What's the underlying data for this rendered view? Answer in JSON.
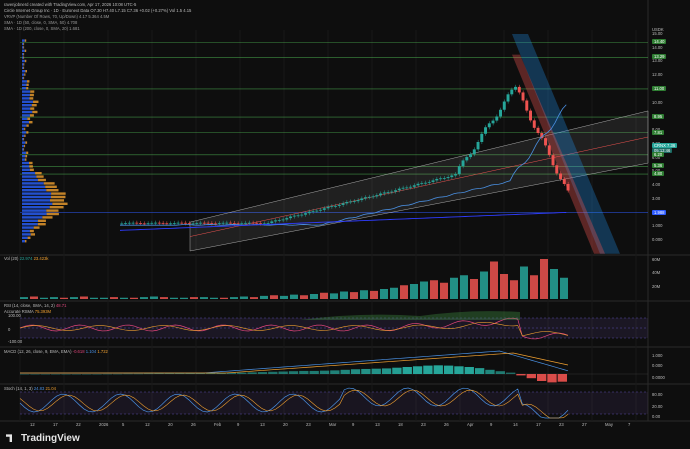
{
  "header": {
    "line1": "ravenjobnerd created with TradingView.com, Apr 17, 2026 10:08 UTC-5",
    "line2": "Circle Internet Group Inc · 1D · Euronext Data  O7.30  H7.40  L7.15  C7.36  +0.02 (+0.27%)  Vol 1.5  4.15",
    "line3": "VRVP (Number Of Rows, 70, Up/Down)  4.17  5.364  4.5M",
    "line4": "SMA · 1D (50, close, 0, SMA, 50)  4.708",
    "line5": "SMA · 1D (200, close, 0, SMA, 20)  1.681"
  },
  "colors": {
    "up": "#26a69a",
    "down": "#ef5350",
    "channel_fill": "#ffffff",
    "sma50": "#4a90e2",
    "sma200": "#2f3cff",
    "level_line": "#4caf50"
  },
  "price_scale": {
    "label": "USDK",
    "ticks": [
      "15.00",
      "14.00",
      "13.00",
      "12.00",
      "11.00",
      "10.00",
      "9.00",
      "8.00",
      "7.00",
      "6.00",
      "5.00",
      "4.00",
      "3.00",
      "2.00",
      "1.000",
      "0.000"
    ],
    "level_tags": [
      "14.40",
      "13.29",
      "11.00",
      "8.95",
      "7.81",
      "6.20",
      "5.36",
      "4.80",
      "1.988"
    ],
    "current_tag": "7.36",
    "current_symbol": "CRNX",
    "countdown": "05:13:46"
  },
  "volume_pane": {
    "label": "Vol (20)",
    "value1": "22.974",
    "value2": "23.423k",
    "scale": [
      "60M",
      "40M",
      "20M",
      "0"
    ],
    "bars": [
      3,
      4,
      2,
      3,
      2,
      3,
      4,
      2,
      2,
      3,
      2,
      2,
      3,
      4,
      3,
      2,
      2,
      3,
      3,
      2,
      2,
      3,
      4,
      3,
      5,
      6,
      5,
      7,
      6,
      8,
      10,
      9,
      12,
      11,
      14,
      13,
      16,
      18,
      22,
      24,
      28,
      30,
      26,
      34,
      38,
      32,
      44,
      60,
      40,
      30,
      52,
      38,
      64,
      48,
      34
    ],
    "bars_down": [
      0,
      1,
      0,
      0,
      1,
      0,
      1,
      0,
      0,
      1,
      0,
      1,
      0,
      0,
      1,
      0,
      0,
      1,
      0,
      0,
      1,
      0,
      0,
      1,
      0,
      1,
      0,
      0,
      1,
      0,
      1,
      0,
      0,
      1,
      0,
      1,
      0,
      0,
      1,
      0,
      0,
      1,
      1,
      0,
      0,
      1,
      0,
      1,
      1,
      1,
      0,
      1,
      1,
      0,
      0
    ]
  },
  "rsi_pane": {
    "label": "RSI (14, close, SMA, 14, 2)",
    "value1": "48.71",
    "value2": "Accurate RSMA",
    "value3": "75.393M",
    "scale": [
      "100.00",
      "0",
      "-100.00"
    ]
  },
  "macd_pane": {
    "label": "MACD (12, 26, close, 9, EMA, EMA)",
    "value1": "-0.618",
    "value2": "1.104",
    "value3": "1.722",
    "scale": [
      "1.000",
      "0.000",
      "0.0000"
    ],
    "hist": [
      0,
      0,
      0,
      0,
      0,
      0,
      0,
      0,
      0.01,
      0.01,
      0.02,
      0.02,
      0.03,
      0.04,
      0.04,
      0.05,
      0.06,
      0.06,
      0.07,
      0.08,
      0.09,
      0.1,
      0.12,
      0.14,
      0.16,
      0.18,
      0.2,
      0.22,
      0.22,
      0.24,
      0.26,
      0.3,
      0.34,
      0.36,
      0.38,
      0.4,
      0.45,
      0.5,
      0.55,
      0.6,
      0.62,
      0.6,
      0.55,
      0.5,
      0.42,
      0.3,
      0.2,
      0.1,
      -0.1,
      -0.3,
      -0.5,
      -0.6,
      -0.55
    ]
  },
  "stoch_pane": {
    "label": "Stoch (14, 1, 3)",
    "value1": "24.83",
    "value2": "21.04",
    "scale": [
      "80.00",
      "20.00",
      "0.00"
    ]
  },
  "xaxis": {
    "labels": [
      "12",
      "17",
      "22",
      "2026",
      "5",
      "12",
      "20",
      "26",
      "Feb",
      "9",
      "13",
      "20",
      "23",
      "Mar",
      "9",
      "13",
      "18",
      "23",
      "26",
      "Apr",
      "9",
      "14",
      "17",
      "23",
      "27",
      "May",
      "7"
    ]
  },
  "footer": {
    "brand": "TradingView"
  }
}
